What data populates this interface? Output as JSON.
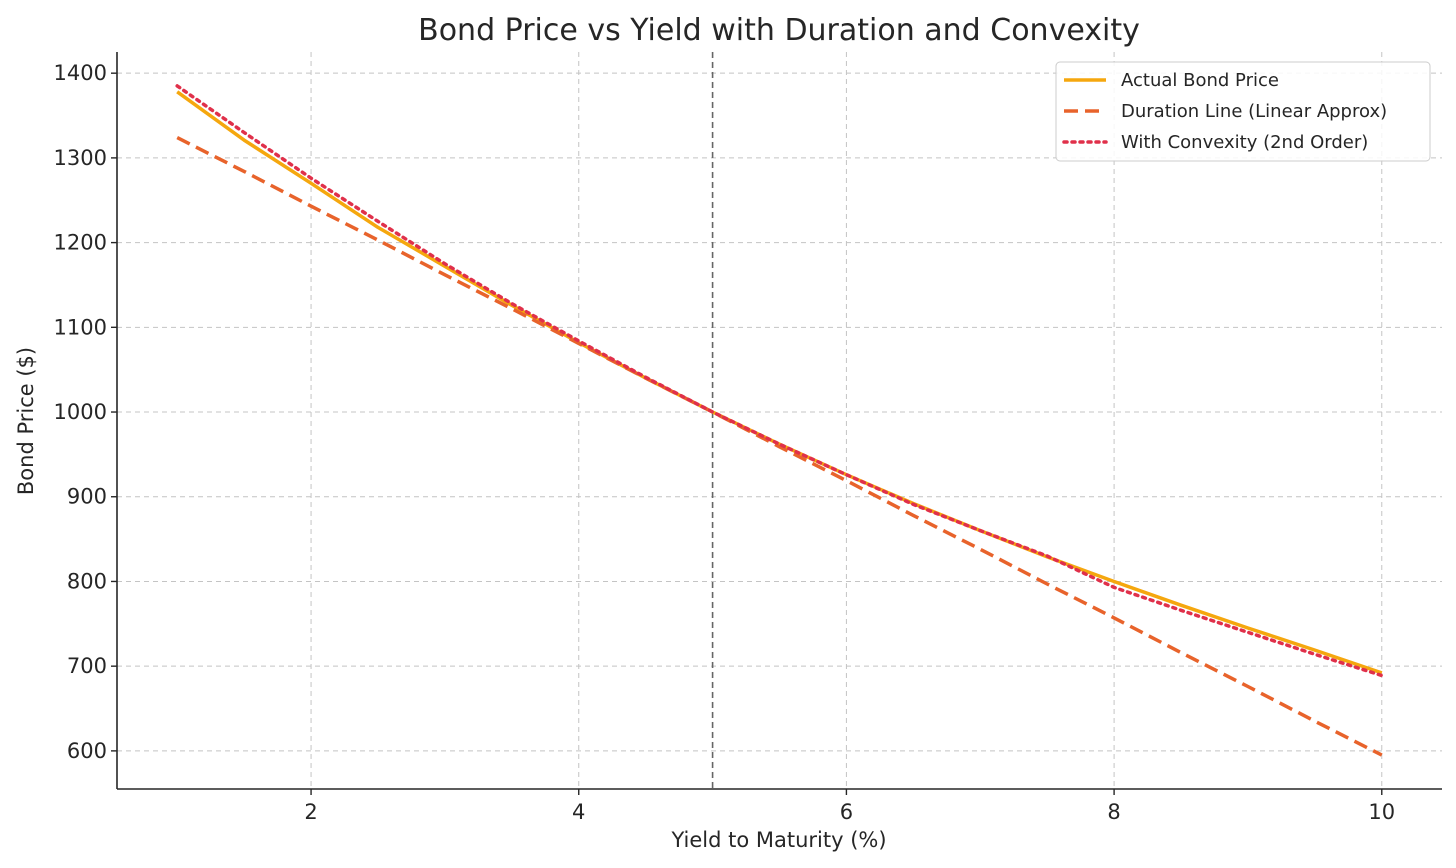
{
  "chart_data": {
    "type": "line",
    "title": "Bond Price vs Yield with Duration and Convexity",
    "xlabel": "Yield to Maturity (%)",
    "ylabel": "Bond Price ($)",
    "xlim": [
      0.55,
      10.45
    ],
    "ylim": [
      555,
      1425
    ],
    "xticks": [
      2,
      4,
      6,
      8,
      10
    ],
    "yticks": [
      600,
      700,
      800,
      900,
      1000,
      1100,
      1200,
      1300,
      1400
    ],
    "grid": true,
    "legend_position": "top-right",
    "vertical_reference_line": {
      "x": 5,
      "color": "#666666"
    },
    "x": [
      1,
      1.5,
      2,
      2.5,
      3,
      3.5,
      4,
      4.5,
      5,
      5.5,
      6,
      6.5,
      7,
      7.5,
      8,
      8.5,
      9,
      9.5,
      10
    ],
    "series": [
      {
        "name": "Actual Bond Price",
        "style": "solid",
        "color": "#F5A70E",
        "values": [
          1378,
          1321,
          1270,
          1218,
          1172,
          1126,
          1082,
          1040,
          1000,
          962,
          926,
          892,
          860,
          829,
          800,
          772,
          745,
          719,
          692
        ]
      },
      {
        "name": "Duration Line (Linear Approx)",
        "style": "dashed",
        "color": "#E8632B",
        "values": [
          1324,
          1284,
          1243,
          1203,
          1162,
          1122,
          1081,
          1040,
          1000,
          959,
          919,
          878,
          838,
          797,
          757,
          716,
          676,
          635,
          595
        ]
      },
      {
        "name": "With Convexity (2nd Order)",
        "style": "dotted",
        "color": "#E0304A",
        "values": [
          1385,
          1330,
          1276,
          1225,
          1175,
          1128,
          1084,
          1041,
          1000,
          962,
          926,
          891,
          860,
          830,
          793,
          766,
          740,
          714,
          689
        ]
      }
    ]
  }
}
